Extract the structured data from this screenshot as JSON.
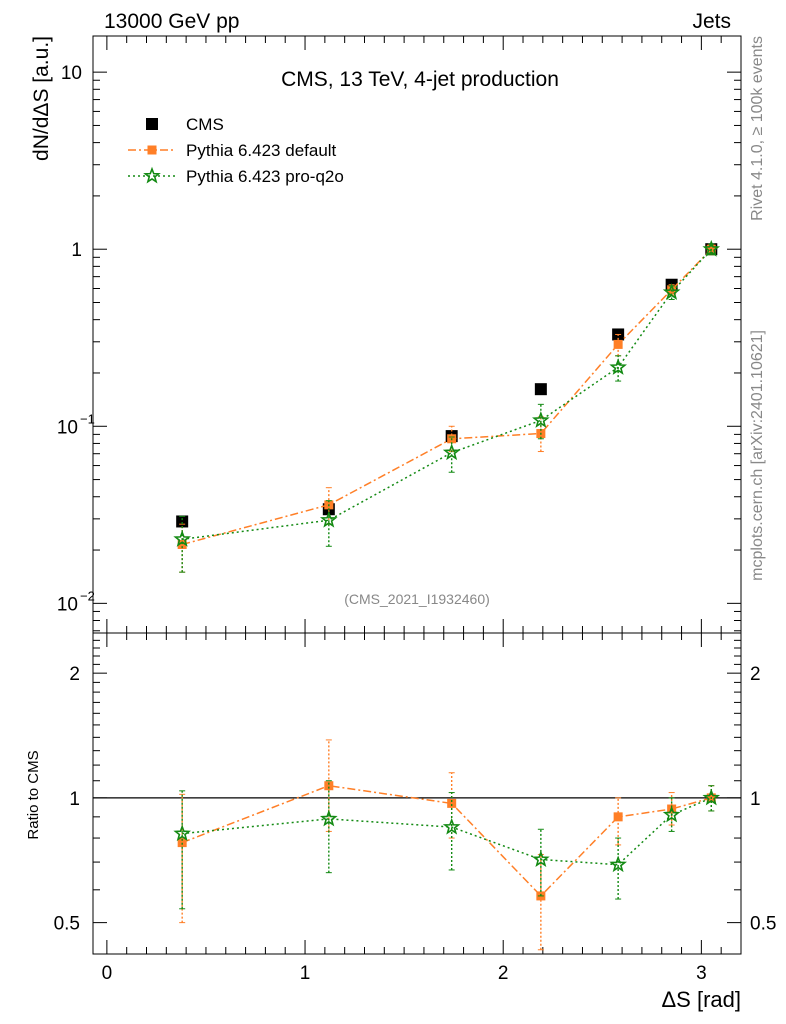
{
  "header": {
    "left": "13000 GeV pp",
    "right": "Jets"
  },
  "side_text": {
    "rivet": "Rivet 4.1.0, ≥ 100k events",
    "mcplots": "mcplots.cern.ch [arXiv:2401.10621]"
  },
  "chart_data": [
    {
      "panel": "main",
      "type": "scatter",
      "title": "CMS, 13 TeV, 4-jet production",
      "watermark": "(CMS_2021_I1932460)",
      "ylabel": "dN/dΔS [a.u.]",
      "xlabel": "ΔS [rad]",
      "yscale": "log",
      "ylim": [
        0.0068,
        16
      ],
      "xlim": [
        -0.07,
        3.2
      ],
      "yticks": [
        {
          "value": 0.01,
          "base": "10",
          "exp": "−2"
        },
        {
          "value": 0.1,
          "base": "10",
          "exp": "−1"
        },
        {
          "value": 1,
          "label": "1"
        },
        {
          "value": 10,
          "label": "10"
        }
      ],
      "xticks": [
        {
          "value": 0,
          "label": "0"
        },
        {
          "value": 1,
          "label": "1"
        },
        {
          "value": 2,
          "label": "2"
        },
        {
          "value": 3,
          "label": "3"
        }
      ],
      "legend_position": "top-left",
      "series": [
        {
          "name": "CMS",
          "color": "#000000",
          "marker": "square",
          "x": [
            0.38,
            1.12,
            1.74,
            2.19,
            2.58,
            2.85,
            3.05
          ],
          "y": [
            0.029,
            0.034,
            0.088,
            0.162,
            0.33,
            0.63,
            1.0
          ],
          "yerr_lo": [
            0.028,
            0.032,
            0.083,
            0.155,
            0.325,
            0.62,
            0.99
          ],
          "yerr_hi": [
            0.03,
            0.036,
            0.093,
            0.169,
            0.335,
            0.64,
            1.01
          ]
        },
        {
          "name": "Pythia 6.423 default",
          "color": "#ff7f27",
          "marker": "square",
          "dash": "8,3,2,3",
          "x": [
            0.38,
            1.12,
            1.74,
            2.19,
            2.58,
            2.85,
            3.05
          ],
          "y": [
            0.0215,
            0.036,
            0.085,
            0.091,
            0.29,
            0.59,
            1.0
          ],
          "yerr_lo": [
            0.015,
            0.028,
            0.072,
            0.072,
            0.25,
            0.55,
            0.93
          ],
          "yerr_hi": [
            0.028,
            0.045,
            0.1,
            0.113,
            0.33,
            0.63,
            1.07
          ]
        },
        {
          "name": "Pythia 6.423 pro-q2o",
          "color": "#138a13",
          "marker": "star",
          "dash": "2,3",
          "x": [
            0.38,
            1.12,
            1.74,
            2.19,
            2.58,
            2.85,
            3.05
          ],
          "y": [
            0.023,
            0.0295,
            0.071,
            0.108,
            0.215,
            0.57,
            1.0
          ],
          "yerr_lo": [
            0.015,
            0.021,
            0.055,
            0.085,
            0.18,
            0.52,
            0.93
          ],
          "yerr_hi": [
            0.031,
            0.038,
            0.087,
            0.133,
            0.25,
            0.62,
            1.07
          ]
        }
      ]
    },
    {
      "panel": "ratio",
      "type": "scatter",
      "ylabel": "Ratio to CMS",
      "yscale": "log",
      "ylim": [
        0.42,
        2.5
      ],
      "reference_line": 1,
      "yticks": [
        {
          "value": 0.5,
          "label": "0.5"
        },
        {
          "value": 1,
          "label": "1"
        },
        {
          "value": 2,
          "label": "2"
        }
      ],
      "series": [
        {
          "name": "Pythia 6.423 default",
          "color": "#ff7f27",
          "marker": "square",
          "dash": "8,3,2,3",
          "x": [
            0.38,
            1.12,
            1.74,
            2.19,
            2.58,
            2.85,
            3.05
          ],
          "y": [
            0.78,
            1.07,
            0.97,
            0.58,
            0.9,
            0.94,
            1.0
          ],
          "yerr_lo": [
            0.5,
            0.83,
            0.8,
            0.43,
            0.77,
            0.86,
            0.93
          ],
          "yerr_hi": [
            1.02,
            1.38,
            1.15,
            0.73,
            1.0,
            1.03,
            1.07
          ]
        },
        {
          "name": "Pythia 6.423 pro-q2o",
          "color": "#138a13",
          "marker": "star",
          "dash": "2,3",
          "x": [
            0.38,
            1.12,
            1.74,
            2.19,
            2.58,
            2.85,
            3.05
          ],
          "y": [
            0.82,
            0.89,
            0.85,
            0.71,
            0.69,
            0.91,
            1.0
          ],
          "yerr_lo": [
            0.54,
            0.66,
            0.67,
            0.58,
            0.57,
            0.83,
            0.93
          ],
          "yerr_hi": [
            1.04,
            1.1,
            1.03,
            0.84,
            0.8,
            1.0,
            1.07
          ]
        }
      ]
    }
  ]
}
